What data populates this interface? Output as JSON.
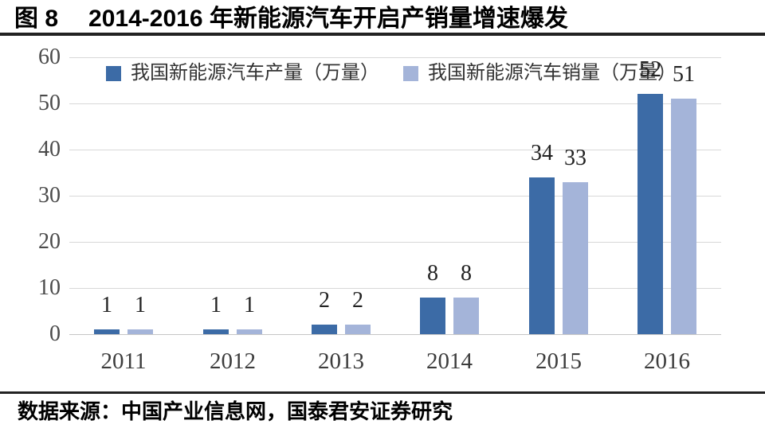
{
  "header": {
    "fig_label": "图 8",
    "title": "2014-2016 年新能源汽车开启产销量增速爆发"
  },
  "footer": {
    "source_text": "数据来源：中国产业信息网，国泰君安证券研究"
  },
  "chart_data": {
    "type": "bar",
    "title": "2014-2016 年新能源汽车开启产销量增速爆发",
    "categories": [
      "2011",
      "2012",
      "2013",
      "2014",
      "2015",
      "2016"
    ],
    "series": [
      {
        "name": "我国新能源汽车产量（万量）",
        "color": "#3C6BA6",
        "values": [
          1,
          1,
          2,
          8,
          34,
          52
        ]
      },
      {
        "name": "我国新能源汽车销量（万量）",
        "color": "#A4B4D9",
        "values": [
          1,
          1,
          2,
          8,
          33,
          51
        ]
      }
    ],
    "xlabel": "",
    "ylabel": "",
    "ylim": [
      0,
      60
    ],
    "yticks": [
      0,
      10,
      20,
      30,
      40,
      50,
      60
    ],
    "grid": true,
    "legend_position": "top",
    "value_labels": [
      {
        "category": "2011",
        "production": "1",
        "sales": "1"
      },
      {
        "category": "2012",
        "production": "1",
        "sales": "1"
      },
      {
        "category": "2013",
        "production": "2",
        "sales": "2"
      },
      {
        "category": "2014",
        "production": "8",
        "sales": "8"
      },
      {
        "category": "2015",
        "production": "34",
        "sales": "33"
      },
      {
        "category": "2016",
        "production": "52",
        "sales": "51"
      }
    ]
  },
  "colors": {
    "series_production": "#3C6BA6",
    "series_sales": "#A4B4D9",
    "gridline": "#D8D8D8",
    "axis_text": "#4A4A4A",
    "value_label_text": "#222222",
    "divider_rule": "#222222",
    "background": "#FFFFFF"
  }
}
